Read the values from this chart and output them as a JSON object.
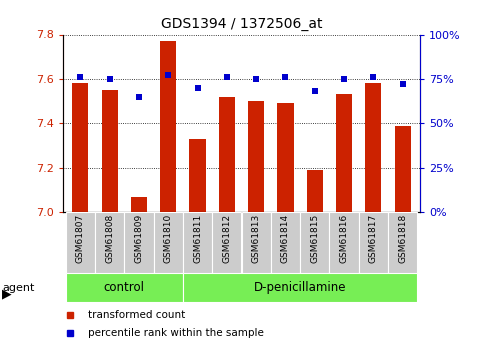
{
  "title": "GDS1394 / 1372506_at",
  "samples": [
    "GSM61807",
    "GSM61808",
    "GSM61809",
    "GSM61810",
    "GSM61811",
    "GSM61812",
    "GSM61813",
    "GSM61814",
    "GSM61815",
    "GSM61816",
    "GSM61817",
    "GSM61818"
  ],
  "bar_values": [
    7.58,
    7.55,
    7.07,
    7.77,
    7.33,
    7.52,
    7.5,
    7.49,
    7.19,
    7.53,
    7.58,
    7.39
  ],
  "percentile_values": [
    76,
    75,
    65,
    77,
    70,
    76,
    75,
    76,
    68,
    75,
    76,
    72
  ],
  "ylim_left": [
    7.0,
    7.8
  ],
  "ylim_right": [
    0,
    100
  ],
  "yticks_left": [
    7.0,
    7.2,
    7.4,
    7.6,
    7.8
  ],
  "yticks_right": [
    0,
    25,
    50,
    75,
    100
  ],
  "bar_color": "#cc2200",
  "dot_color": "#0000cc",
  "control_group_count": 4,
  "control_label": "control",
  "treatment_label": "D-penicillamine",
  "agent_label": "agent",
  "legend_bar_label": "transformed count",
  "legend_dot_label": "percentile rank within the sample",
  "group_bg_color": "#77ee55",
  "tick_bg_color": "#cccccc",
  "ylabel_left_color": "#cc2200",
  "ylabel_right_color": "#0000cc"
}
